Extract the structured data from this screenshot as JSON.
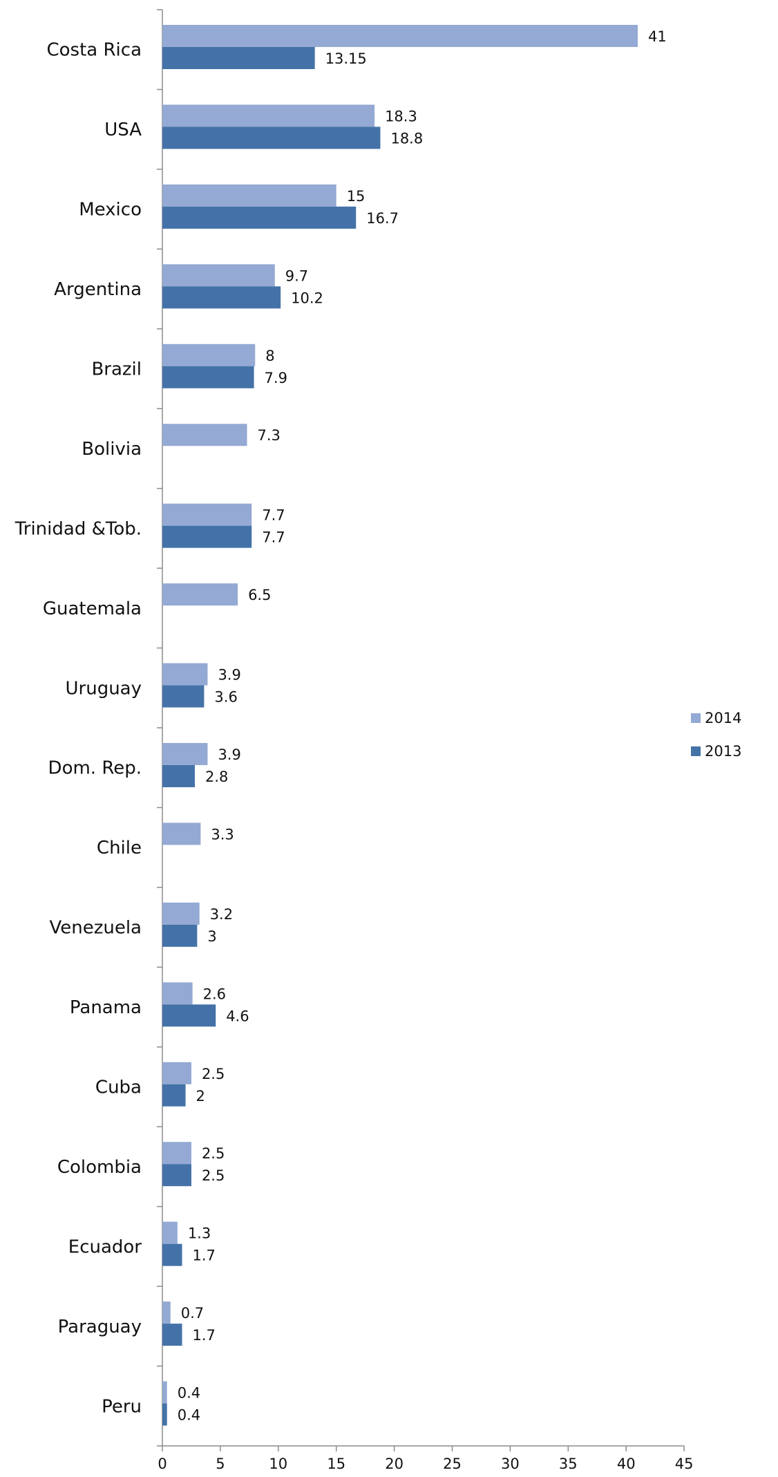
{
  "chart_data": {
    "type": "bar",
    "orientation": "horizontal",
    "categories": [
      "Costa Rica",
      "USA",
      "Mexico",
      "Argentina",
      "Brazil",
      "Bolivia",
      "Trinidad &Tob.",
      "Guatemala",
      "Uruguay",
      "Dom. Rep.",
      "Chile",
      "Venezuela",
      "Panama",
      "Cuba",
      "Colombia",
      "Ecuador",
      "Paraguay",
      "Peru"
    ],
    "series": [
      {
        "name": "2014",
        "color": "#94A9D3",
        "values": [
          41,
          18.3,
          15,
          9.7,
          8,
          7.3,
          7.7,
          6.5,
          3.9,
          3.9,
          3.3,
          3.2,
          2.6,
          2.5,
          2.5,
          1.3,
          0.7,
          0.4
        ],
        "labels": [
          "41",
          "18.3",
          "15",
          "9.7",
          "8",
          "7.3",
          "7.7",
          "6.5",
          "3.9",
          "3.9",
          "3.3",
          "3.2",
          "2.6",
          "2.5",
          "2.5",
          "1.3",
          "0.7",
          "0.4"
        ]
      },
      {
        "name": "2013",
        "color": "#4472A8",
        "values": [
          13.15,
          18.8,
          16.7,
          10.2,
          7.9,
          null,
          7.7,
          null,
          3.6,
          2.8,
          null,
          3,
          4.6,
          2,
          2.5,
          1.7,
          1.7,
          0.4
        ],
        "labels": [
          "13.15",
          "18.8",
          "16.7",
          "10.2",
          "7.9",
          null,
          "7.7",
          null,
          "3.6",
          "2.8",
          null,
          "3",
          "4.6",
          "2",
          "2.5",
          "1.7",
          "1.7",
          "0.4"
        ]
      }
    ],
    "xlim": [
      0,
      45
    ],
    "xticks": [
      0,
      5,
      10,
      15,
      20,
      25,
      30,
      35,
      40,
      45
    ],
    "title": "",
    "xlabel": "",
    "ylabel": "",
    "grid": false,
    "legend": {
      "position": "right",
      "entries": [
        "2014",
        "2013"
      ]
    }
  }
}
